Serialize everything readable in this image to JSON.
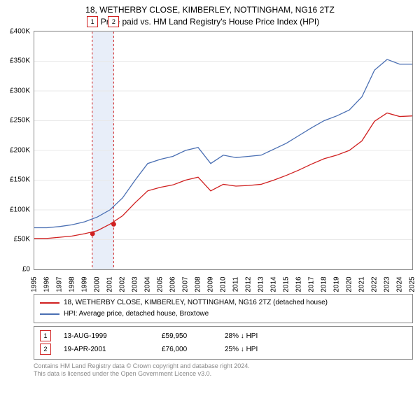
{
  "title": {
    "line1": "18, WETHERBY CLOSE, KIMBERLEY, NOTTINGHAM, NG16 2TZ",
    "line2": "Price paid vs. HM Land Registry's House Price Index (HPI)",
    "fontsize": 12,
    "color": "#000000"
  },
  "chart": {
    "type": "line",
    "background_color": "#ffffff",
    "plot_border_color": "#888888",
    "grid_color": "#e8e8e8",
    "grid_on": true,
    "xlim": [
      1995,
      2025
    ],
    "ylim": [
      0,
      400000
    ],
    "ytick_step": 50000,
    "ytick_labels": [
      "£0",
      "£50K",
      "£100K",
      "£150K",
      "£200K",
      "£250K",
      "£300K",
      "£350K",
      "£400K"
    ],
    "xtick_step": 1,
    "xtick_labels": [
      "1995",
      "1996",
      "1997",
      "1998",
      "1999",
      "2000",
      "2001",
      "2002",
      "2003",
      "2004",
      "2005",
      "2006",
      "2007",
      "2008",
      "2009",
      "2010",
      "2011",
      "2012",
      "2013",
      "2014",
      "2015",
      "2016",
      "2017",
      "2018",
      "2019",
      "2020",
      "2021",
      "2022",
      "2023",
      "2024",
      "2025"
    ],
    "tick_fontsize": 10,
    "tick_color": "#000000",
    "highlight_band": {
      "x_start": 1999.6,
      "x_end": 2001.3,
      "fill": "#e8eef9",
      "border_color": "#d02020",
      "border_dash": "3,3"
    },
    "event_markers": [
      {
        "label": "1",
        "x": 1999.62,
        "y": 59950,
        "box_border": "#d02020",
        "box_text": "#000000",
        "dot_color": "#d02020"
      },
      {
        "label": "2",
        "x": 2001.3,
        "y": 76000,
        "box_border": "#d02020",
        "box_text": "#000000",
        "dot_color": "#d02020"
      }
    ],
    "series": [
      {
        "name": "hpi",
        "label": "HPI: Average price, detached house, Broxtowe",
        "color": "#4a6fb3",
        "line_width": 1.3,
        "data": [
          [
            1995,
            70000
          ],
          [
            1996,
            70000
          ],
          [
            1997,
            72000
          ],
          [
            1998,
            75000
          ],
          [
            1999,
            80000
          ],
          [
            2000,
            88000
          ],
          [
            2001,
            100000
          ],
          [
            2002,
            120000
          ],
          [
            2003,
            150000
          ],
          [
            2004,
            178000
          ],
          [
            2005,
            185000
          ],
          [
            2006,
            190000
          ],
          [
            2007,
            200000
          ],
          [
            2008,
            205000
          ],
          [
            2009,
            178000
          ],
          [
            2010,
            192000
          ],
          [
            2011,
            188000
          ],
          [
            2012,
            190000
          ],
          [
            2013,
            192000
          ],
          [
            2014,
            202000
          ],
          [
            2015,
            212000
          ],
          [
            2016,
            225000
          ],
          [
            2017,
            238000
          ],
          [
            2018,
            250000
          ],
          [
            2019,
            258000
          ],
          [
            2020,
            268000
          ],
          [
            2021,
            290000
          ],
          [
            2022,
            335000
          ],
          [
            2023,
            353000
          ],
          [
            2024,
            345000
          ],
          [
            2025,
            345000
          ]
        ]
      },
      {
        "name": "paid",
        "label": "18, WETHERBY CLOSE, KIMBERLEY, NOTTINGHAM, NG16 2TZ (detached house)",
        "color": "#d02020",
        "line_width": 1.3,
        "data": [
          [
            1995,
            52000
          ],
          [
            1996,
            52000
          ],
          [
            1997,
            54000
          ],
          [
            1998,
            56000
          ],
          [
            1999,
            59950
          ],
          [
            2000,
            65000
          ],
          [
            2001,
            76000
          ],
          [
            2002,
            90000
          ],
          [
            2003,
            112000
          ],
          [
            2004,
            132000
          ],
          [
            2005,
            138000
          ],
          [
            2006,
            142000
          ],
          [
            2007,
            150000
          ],
          [
            2008,
            155000
          ],
          [
            2009,
            132000
          ],
          [
            2010,
            143000
          ],
          [
            2011,
            140000
          ],
          [
            2012,
            141000
          ],
          [
            2013,
            143000
          ],
          [
            2014,
            150000
          ],
          [
            2015,
            158000
          ],
          [
            2016,
            167000
          ],
          [
            2017,
            177000
          ],
          [
            2018,
            186000
          ],
          [
            2019,
            192000
          ],
          [
            2020,
            200000
          ],
          [
            2021,
            216000
          ],
          [
            2022,
            249000
          ],
          [
            2023,
            263000
          ],
          [
            2024,
            257000
          ],
          [
            2025,
            258000
          ]
        ]
      }
    ]
  },
  "legend": {
    "border_color": "#888888",
    "fontsize": 10,
    "items": [
      {
        "color": "#d02020",
        "label": "18, WETHERBY CLOSE, KIMBERLEY, NOTTINGHAM, NG16 2TZ (detached house)"
      },
      {
        "color": "#4a6fb3",
        "label": "HPI: Average price, detached house, Broxtowe"
      }
    ]
  },
  "events": {
    "border_color": "#888888",
    "fontsize": 10,
    "marker_border": "#d02020",
    "rows": [
      {
        "num": "1",
        "date": "13-AUG-1999",
        "price": "£59,950",
        "delta": "28% ↓ HPI"
      },
      {
        "num": "2",
        "date": "19-APR-2001",
        "price": "£76,000",
        "delta": "25% ↓ HPI"
      }
    ]
  },
  "footer": {
    "line1": "Contains HM Land Registry data © Crown copyright and database right 2024.",
    "line2": "This data is licensed under the Open Government Licence v3.0.",
    "color": "#888888",
    "fontsize": 9
  }
}
